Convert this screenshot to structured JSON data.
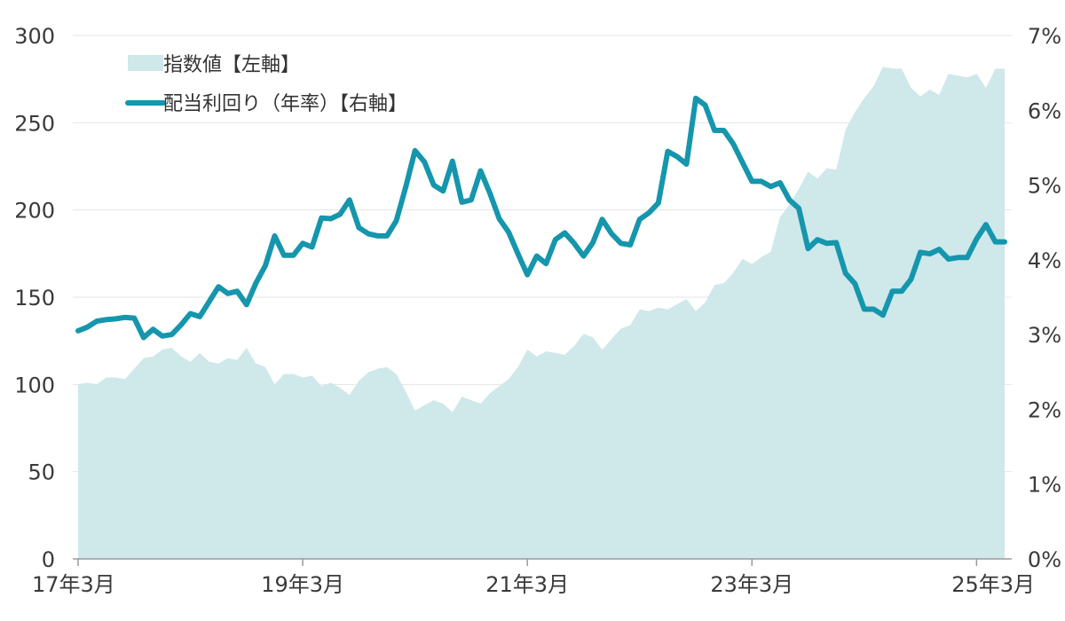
{
  "chart_data": {
    "type": "line",
    "x": [
      "2017-03",
      "2017-04",
      "2017-05",
      "2017-06",
      "2017-07",
      "2017-08",
      "2017-09",
      "2017-10",
      "2017-11",
      "2017-12",
      "2018-01",
      "2018-02",
      "2018-03",
      "2018-04",
      "2018-05",
      "2018-06",
      "2018-07",
      "2018-08",
      "2018-09",
      "2018-10",
      "2018-11",
      "2018-12",
      "2019-01",
      "2019-02",
      "2019-03",
      "2019-04",
      "2019-05",
      "2019-06",
      "2019-07",
      "2019-08",
      "2019-09",
      "2019-10",
      "2019-11",
      "2019-12",
      "2020-01",
      "2020-02",
      "2020-03",
      "2020-04",
      "2020-05",
      "2020-06",
      "2020-07",
      "2020-08",
      "2020-09",
      "2020-10",
      "2020-11",
      "2020-12",
      "2021-01",
      "2021-02",
      "2021-03",
      "2021-04",
      "2021-05",
      "2021-06",
      "2021-07",
      "2021-08",
      "2021-09",
      "2021-10",
      "2021-11",
      "2021-12",
      "2022-01",
      "2022-02",
      "2022-03",
      "2022-04",
      "2022-05",
      "2022-06",
      "2022-07",
      "2022-08",
      "2022-09",
      "2022-10",
      "2022-11",
      "2022-12",
      "2023-01",
      "2023-02",
      "2023-03",
      "2023-04",
      "2023-05",
      "2023-06",
      "2023-07",
      "2023-08",
      "2023-09",
      "2023-10",
      "2023-11",
      "2023-12",
      "2024-01",
      "2024-02",
      "2024-03",
      "2024-04",
      "2024-05",
      "2024-06",
      "2024-07",
      "2024-08",
      "2024-09",
      "2024-10",
      "2024-11",
      "2024-12",
      "2025-01",
      "2025-02",
      "2025-03",
      "2025-04",
      "2025-05",
      "2025-06"
    ],
    "series": [
      {
        "name": "指数値【左軸】",
        "axis": "left",
        "style": "area",
        "color": "#cfe8ea",
        "values": [
          100,
          101,
          100,
          104,
          104,
          103,
          109,
          115,
          116,
          120,
          121,
          116,
          113,
          118,
          113,
          112,
          115,
          114,
          121,
          112,
          110,
          100,
          106,
          106,
          104,
          105,
          99,
          101,
          98,
          94,
          102,
          107,
          109,
          110,
          106,
          96,
          85,
          88,
          91,
          89,
          84,
          93,
          91,
          89,
          95,
          99,
          103,
          110,
          120,
          116,
          119,
          118,
          117,
          122,
          129,
          127,
          120,
          126,
          132,
          134,
          143,
          142,
          144,
          143,
          146,
          149,
          142,
          147,
          157,
          158,
          164,
          172,
          169,
          173,
          176,
          196,
          203,
          212,
          222,
          218,
          224,
          223,
          246,
          256,
          264,
          271,
          282,
          281,
          281,
          270,
          265,
          269,
          266,
          278,
          277,
          276,
          278,
          270,
          281,
          281
        ]
      },
      {
        "name": "配当利回り（年率）【右軸】",
        "axis": "right",
        "style": "line",
        "color": "#1596ad",
        "values": [
          3.05,
          3.1,
          3.18,
          3.2,
          3.21,
          3.23,
          3.22,
          2.96,
          3.07,
          2.98,
          3.0,
          3.13,
          3.28,
          3.24,
          3.44,
          3.64,
          3.55,
          3.58,
          3.4,
          3.69,
          3.92,
          4.32,
          4.06,
          4.06,
          4.22,
          4.17,
          4.56,
          4.55,
          4.61,
          4.8,
          4.43,
          4.35,
          4.32,
          4.32,
          4.52,
          4.97,
          5.46,
          5.31,
          5.0,
          4.92,
          5.32,
          4.77,
          4.8,
          5.19,
          4.89,
          4.55,
          4.37,
          4.08,
          3.8,
          4.05,
          3.95,
          4.27,
          4.36,
          4.22,
          4.05,
          4.23,
          4.54,
          4.35,
          4.22,
          4.2,
          4.54,
          4.63,
          4.76,
          5.45,
          5.38,
          5.28,
          6.16,
          6.07,
          5.73,
          5.73,
          5.55,
          5.3,
          5.05,
          5.05,
          4.98,
          5.03,
          4.8,
          4.69,
          4.15,
          4.27,
          4.22,
          4.23,
          3.82,
          3.68,
          3.34,
          3.34,
          3.26,
          3.58,
          3.58,
          3.74,
          4.1,
          4.08,
          4.14,
          4.01,
          4.03,
          4.03,
          4.28,
          4.47,
          4.24,
          4.24
        ]
      }
    ],
    "left_axis": {
      "ylim": [
        0,
        300
      ],
      "ticks": [
        "0",
        "50",
        "100",
        "150",
        "200",
        "250",
        "300"
      ]
    },
    "right_axis": {
      "ylim": [
        0,
        7
      ],
      "ticks": [
        "0%",
        "1%",
        "2%",
        "3%",
        "4%",
        "5%",
        "6%",
        "7%"
      ]
    },
    "x_ticks": [
      "17年3月",
      "19年3月",
      "21年3月",
      "23年3月",
      "25年3月"
    ],
    "grid": true,
    "legend_position": "top-left"
  }
}
